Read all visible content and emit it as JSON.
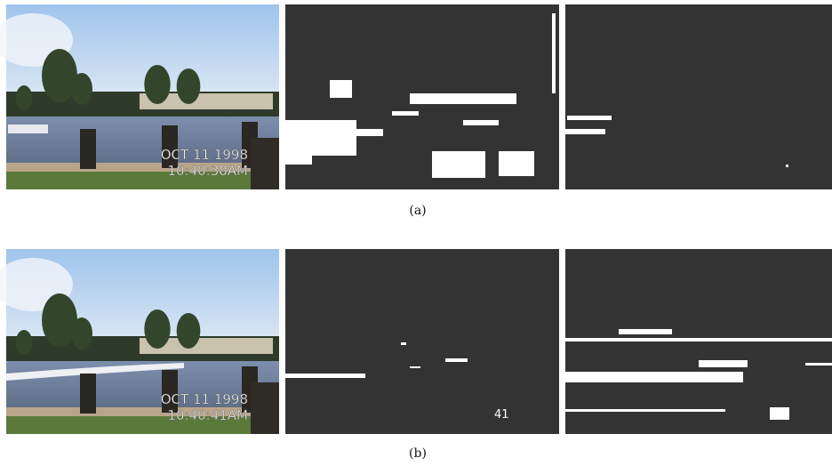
{
  "panels": [
    {
      "label": "(a)",
      "timestamp": {
        "date": "OCT 11 1998",
        "time": "10:40:38AM"
      }
    },
    {
      "label": "(b)",
      "timestamp": {
        "date": "OCT 11 1998",
        "time": "10:40:41AM"
      },
      "mask_digits": "41"
    }
  ]
}
